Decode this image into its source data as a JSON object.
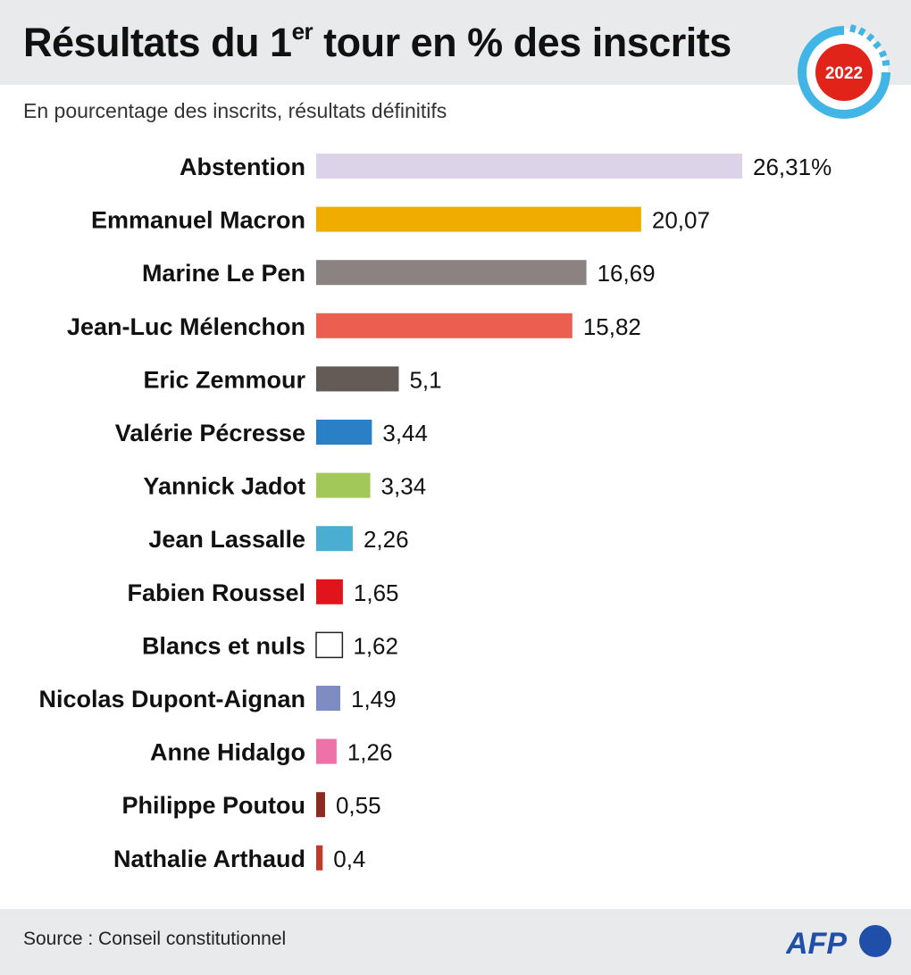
{
  "header": {
    "title_main": "Résultats du 1",
    "title_sup": "er",
    "title_rest": " tour en % des inscrits",
    "subtitle": "En pourcentage des inscrits, résultats définitifs",
    "badge": "2022"
  },
  "footer": {
    "source": "Source : Conseil constitutionnel",
    "logo": "AFP"
  },
  "colors": {
    "header_bg": "#e9eaeb",
    "badge_red": "#e2231a",
    "badge_ring": "#41b6e6"
  },
  "chart_data": {
    "type": "bar",
    "orientation": "horizontal",
    "title": "Résultats du 1er tour en % des inscrits",
    "subtitle": "En pourcentage des inscrits, résultats définitifs",
    "xlim": [
      0,
      26.31
    ],
    "grid": false,
    "categories": [
      "Abstention",
      "Emmanuel Macron",
      "Marine Le Pen",
      "Jean-Luc Mélenchon",
      "Eric Zemmour",
      "Valérie Pécresse",
      "Yannick Jadot",
      "Jean Lassalle",
      "Fabien Roussel",
      "Blancs et nuls",
      "Nicolas Dupont-Aignan",
      "Anne Hidalgo",
      "Philippe Poutou",
      "Nathalie Arthaud"
    ],
    "values": [
      26.31,
      20.07,
      16.69,
      15.82,
      5.1,
      3.44,
      3.34,
      2.26,
      1.65,
      1.62,
      1.49,
      1.26,
      0.55,
      0.4
    ],
    "value_labels": [
      "26,31%",
      "20,07",
      "16,69",
      "15,82",
      "5,1",
      "3,44",
      "3,34",
      "2,26",
      "1,65",
      "1,62",
      "1,49",
      "1,26",
      "0,55",
      "0,4"
    ],
    "bar_colors": [
      "#ddd3e9",
      "#f0ad00",
      "#8a8382",
      "#ec5f50",
      "#655b56",
      "#2a80c7",
      "#a3c85a",
      "#4aaed3",
      "#e1141b",
      "#ffffff",
      "#7d8cc2",
      "#ee72a8",
      "#8b2a1e",
      "#c0392b"
    ]
  }
}
